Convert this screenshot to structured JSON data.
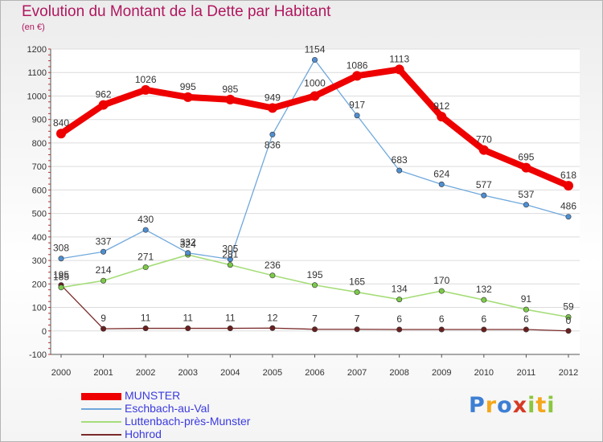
{
  "chart_data": {
    "type": "line",
    "title": "Evolution du Montant de la Dette par Habitant",
    "subtitle": "(en €)",
    "x": [
      "2000",
      "2001",
      "2002",
      "2003",
      "2004",
      "2005",
      "2006",
      "2007",
      "2008",
      "2009",
      "2010",
      "2011",
      "2012"
    ],
    "yticks": [
      -100,
      0,
      100,
      200,
      300,
      400,
      500,
      600,
      700,
      800,
      900,
      1000,
      1100,
      1200
    ],
    "ylim": [
      -100,
      1200
    ],
    "grid": "horizontal",
    "legend_position": "bottom-left",
    "series": [
      {
        "name": "MUNSTER",
        "color": "#ee0000",
        "values": [
          840,
          962,
          1026,
          995,
          985,
          949,
          1000,
          1086,
          1113,
          912,
          770,
          695,
          618
        ]
      },
      {
        "name": "Eschbach-au-Val",
        "color": "#6fa8dc",
        "values": [
          308,
          337,
          430,
          332,
          305,
          836,
          1154,
          917,
          683,
          624,
          577,
          537,
          486
        ]
      },
      {
        "name": "Luttenbach-près-Munster",
        "color": "#a6dd7a",
        "values": [
          185,
          214,
          271,
          324,
          281,
          236,
          195,
          165,
          134,
          170,
          132,
          91,
          59
        ]
      },
      {
        "name": "Hohrod",
        "color": "#7a2a2a",
        "values": [
          195,
          9,
          11,
          11,
          11,
          12,
          7,
          7,
          6,
          6,
          6,
          6,
          0
        ]
      }
    ]
  },
  "brand": {
    "letters": [
      "P",
      "r",
      "o",
      "x",
      "i",
      "t",
      "i"
    ],
    "colors": [
      "#3d7fd3",
      "#f4a71c",
      "#3d7fd3",
      "#d63a25",
      "#8cc63f",
      "#f4a71c",
      "#8cc63f"
    ]
  }
}
